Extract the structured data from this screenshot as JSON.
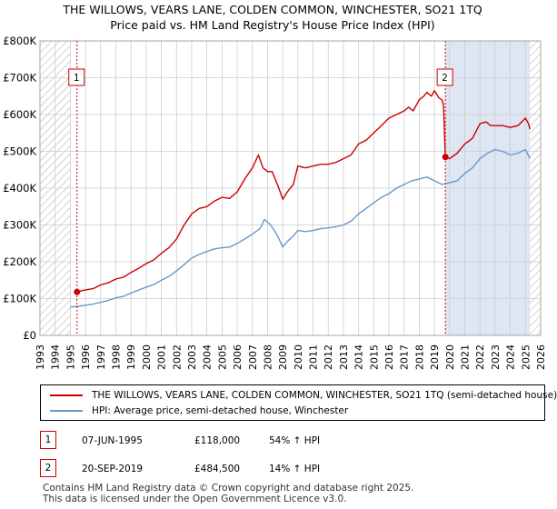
{
  "title": {
    "line1": "THE WILLOWS, VEARS LANE, COLDEN COMMON, WINCHESTER, SO21 1TQ",
    "line2": "Price paid vs. HM Land Registry's House Price Index (HPI)"
  },
  "colors": {
    "price_paid": "#cc0000",
    "hpi": "#6b97c9",
    "shade": "#dde6f2",
    "grid": "#cccccc",
    "hatch": "#aaaaaa"
  },
  "chart_data": {
    "type": "line",
    "title": "THE WILLOWS, VEARS LANE, COLDEN COMMON, WINCHESTER, SO21 1TQ — Price paid vs. HM Land Registry's House Price Index (HPI)",
    "xlim": [
      1993,
      2026
    ],
    "ylim": [
      0,
      800000
    ],
    "x_ticks": [
      1993,
      1994,
      1995,
      1996,
      1997,
      1998,
      1999,
      2000,
      2001,
      2002,
      2003,
      2004,
      2005,
      2006,
      2007,
      2008,
      2009,
      2010,
      2011,
      2012,
      2013,
      2014,
      2015,
      2016,
      2017,
      2018,
      2019,
      2020,
      2021,
      2022,
      2023,
      2024,
      2025,
      2026
    ],
    "y_ticks": [
      0,
      100000,
      200000,
      300000,
      400000,
      500000,
      600000,
      700000,
      800000
    ],
    "y_tick_labels": [
      "£0",
      "£100K",
      "£200K",
      "£300K",
      "£400K",
      "£500K",
      "£600K",
      "£700K",
      "£800K"
    ],
    "grid": true,
    "hatched_before": 1995.0,
    "hatched_after": 2025.3,
    "shaded_region": [
      2019.72,
      2025.3
    ],
    "series": [
      {
        "name": "THE WILLOWS, VEARS LANE, COLDEN COMMON, WINCHESTER, SO21 1TQ (semi-detached house)",
        "color": "#cc0000",
        "x": [
          1995.44,
          1995.8,
          1996.5,
          1997,
          1997.5,
          1998,
          1998.5,
          1999,
          1999.5,
          2000,
          2000.5,
          2001,
          2001.5,
          2002,
          2002.5,
          2003,
          2003.5,
          2004,
          2004.5,
          2005,
          2005.5,
          2006,
          2006.5,
          2007,
          2007.4,
          2007.7,
          2008,
          2008.3,
          2008.7,
          2009.0,
          2009.3,
          2009.7,
          2010,
          2010.5,
          2011,
          2011.5,
          2012,
          2012.5,
          2013,
          2013.5,
          2014,
          2014.5,
          2015,
          2015.5,
          2016,
          2016.5,
          2017,
          2017.3,
          2017.6,
          2018,
          2018.3,
          2018.5,
          2018.8,
          2019.0,
          2019.3,
          2019.5,
          2019.6,
          2019.72,
          2020,
          2020.5,
          2021,
          2021.5,
          2022,
          2022.4,
          2022.7,
          2023,
          2023.5,
          2024,
          2024.5,
          2025,
          2025.2,
          2025.3
        ],
        "values": [
          118000,
          122000,
          127000,
          137000,
          143000,
          153000,
          158000,
          171000,
          182000,
          195000,
          205000,
          223000,
          238000,
          262000,
          300000,
          330000,
          345000,
          350000,
          365000,
          375000,
          372000,
          390000,
          425000,
          455000,
          490000,
          455000,
          445000,
          445000,
          405000,
          370000,
          390000,
          410000,
          460000,
          455000,
          460000,
          465000,
          465000,
          470000,
          480000,
          490000,
          520000,
          530000,
          550000,
          570000,
          590000,
          600000,
          610000,
          620000,
          610000,
          640000,
          650000,
          660000,
          650000,
          665000,
          645000,
          640000,
          625000,
          484500,
          480000,
          495000,
          520000,
          535000,
          575000,
          580000,
          570000,
          570000,
          570000,
          565000,
          570000,
          590000,
          575000,
          560000
        ]
      },
      {
        "name": "HPI: Average price, semi-detached house, Winchester",
        "color": "#6b97c9",
        "x": [
          1995.0,
          1995.5,
          1996,
          1996.5,
          1997,
          1997.5,
          1998,
          1998.5,
          1999,
          1999.5,
          2000,
          2000.5,
          2001,
          2001.5,
          2002,
          2002.5,
          2003,
          2003.5,
          2004,
          2004.5,
          2005,
          2005.5,
          2006,
          2006.5,
          2007,
          2007.5,
          2007.8,
          2008.2,
          2008.6,
          2009.0,
          2009.3,
          2009.7,
          2010,
          2010.5,
          2011,
          2011.5,
          2012,
          2012.5,
          2013,
          2013.5,
          2014,
          2014.5,
          2015,
          2015.5,
          2016,
          2016.5,
          2017,
          2017.5,
          2018,
          2018.5,
          2019,
          2019.5,
          2020,
          2020.5,
          2021,
          2021.5,
          2022,
          2022.5,
          2023,
          2023.5,
          2024,
          2024.5,
          2025,
          2025.3
        ],
        "values": [
          77000,
          79000,
          82000,
          85000,
          90000,
          95000,
          102000,
          106000,
          115000,
          123000,
          131000,
          138000,
          150000,
          160000,
          175000,
          192000,
          210000,
          220000,
          228000,
          235000,
          238000,
          240000,
          250000,
          262000,
          275000,
          290000,
          315000,
          300000,
          275000,
          240000,
          255000,
          270000,
          285000,
          282000,
          285000,
          290000,
          292000,
          295000,
          300000,
          310000,
          330000,
          345000,
          360000,
          375000,
          385000,
          400000,
          410000,
          420000,
          425000,
          430000,
          420000,
          410000,
          415000,
          420000,
          440000,
          455000,
          480000,
          495000,
          505000,
          500000,
          490000,
          495000,
          505000,
          480000
        ]
      }
    ],
    "markers": [
      {
        "label": "1",
        "x": 1995.44,
        "value": 118000
      },
      {
        "label": "2",
        "x": 2019.72,
        "value": 484500
      }
    ]
  },
  "legend": {
    "item1": "THE WILLOWS, VEARS LANE, COLDEN COMMON, WINCHESTER, SO21 1TQ (semi-detached house)",
    "item2": "HPI: Average price, semi-detached house, Winchester"
  },
  "transactions": [
    {
      "num": "1",
      "date": "07-JUN-1995",
      "price": "£118,000",
      "hpi": "54% ↑ HPI"
    },
    {
      "num": "2",
      "date": "20-SEP-2019",
      "price": "£484,500",
      "hpi": "14% ↑ HPI"
    }
  ],
  "footer": {
    "line1": "Contains HM Land Registry data © Crown copyright and database right 2025.",
    "line2": "This data is licensed under the Open Government Licence v3.0."
  }
}
